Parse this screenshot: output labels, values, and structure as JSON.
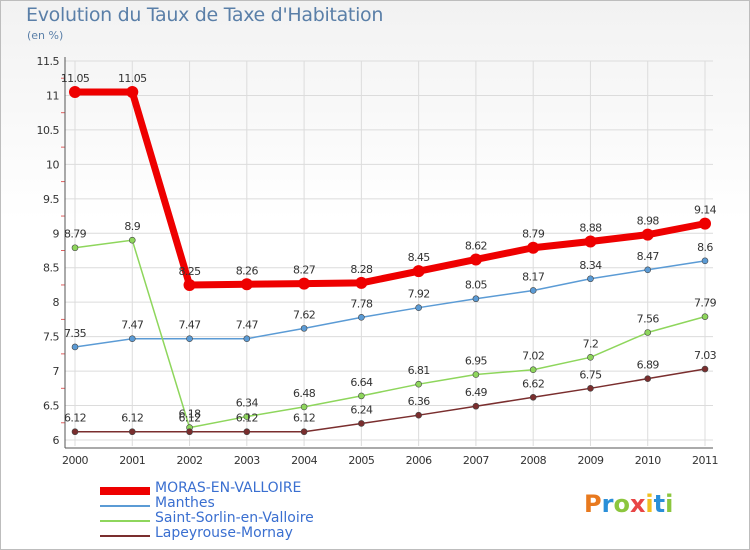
{
  "title": "Evolution du Taux de Taxe d'Habitation",
  "unit": "(en %)",
  "logo": {
    "letters": [
      "P",
      "r",
      "o",
      "x",
      "i",
      "t",
      "i"
    ],
    "colors": [
      "#e8791e",
      "#2a8fd8",
      "#8cc63e",
      "#e84545",
      "#f0c020",
      "#2a8fd8",
      "#8cc63e"
    ]
  },
  "chart_data": {
    "type": "line",
    "x": [
      "2000",
      "2001",
      "2002",
      "2003",
      "2004",
      "2005",
      "2006",
      "2007",
      "2008",
      "2009",
      "2010",
      "2011"
    ],
    "ylim": [
      6,
      11.5
    ],
    "yticks": [
      6,
      6.5,
      7,
      7.5,
      8,
      8.5,
      9,
      9.5,
      10,
      10.5,
      11,
      11.5
    ],
    "ytick_labels": [
      "6",
      "6.5",
      "7",
      "7.5",
      "8",
      "8.5",
      "9",
      "9.5",
      "10",
      "10.5",
      "11",
      "11.5"
    ],
    "grid": true,
    "legend_position": "bottom-left",
    "series": [
      {
        "name": "MORAS-EN-VALLOIRE",
        "color": "#ee0000",
        "bold": true,
        "values": [
          11.05,
          11.05,
          8.25,
          8.26,
          8.27,
          8.28,
          8.45,
          8.62,
          8.79,
          8.88,
          8.98,
          9.14
        ],
        "labels": [
          "11.05",
          "11.05",
          "8.25",
          "8.26",
          "8.27",
          "8.28",
          "8.45",
          "8.62",
          "8.79",
          "8.88",
          "8.98",
          "9.14"
        ]
      },
      {
        "name": "Manthes",
        "color": "#5b9bd5",
        "bold": false,
        "values": [
          7.35,
          7.47,
          7.47,
          7.47,
          7.62,
          7.78,
          7.92,
          8.05,
          8.17,
          8.34,
          8.47,
          8.6
        ],
        "labels": [
          "7.35",
          "7.47",
          "7.47",
          "7.47",
          "7.62",
          "7.78",
          "7.92",
          "8.05",
          "8.17",
          "8.34",
          "8.47",
          "8.6"
        ]
      },
      {
        "name": "Saint-Sorlin-en-Valloire",
        "color": "#8ed65c",
        "bold": false,
        "values": [
          8.79,
          8.9,
          6.18,
          6.34,
          6.48,
          6.64,
          6.81,
          6.95,
          7.02,
          7.2,
          7.56,
          7.79
        ],
        "labels": [
          "8.79",
          "8.9",
          "6.18",
          "6.34",
          "6.48",
          "6.64",
          "6.81",
          "6.95",
          "7.02",
          "7.2",
          "7.56",
          "7.79"
        ]
      },
      {
        "name": "Lapeyrouse-Mornay",
        "color": "#7a2e2e",
        "bold": false,
        "values": [
          6.12,
          6.12,
          6.12,
          6.12,
          6.12,
          6.24,
          6.36,
          6.49,
          6.62,
          6.75,
          6.89,
          7.03
        ],
        "labels": [
          "6.12",
          "6.12",
          "6.12",
          "6.12",
          "6.12",
          "6.24",
          "6.36",
          "6.49",
          "6.62",
          "6.75",
          "6.89",
          "7.03"
        ]
      }
    ]
  }
}
